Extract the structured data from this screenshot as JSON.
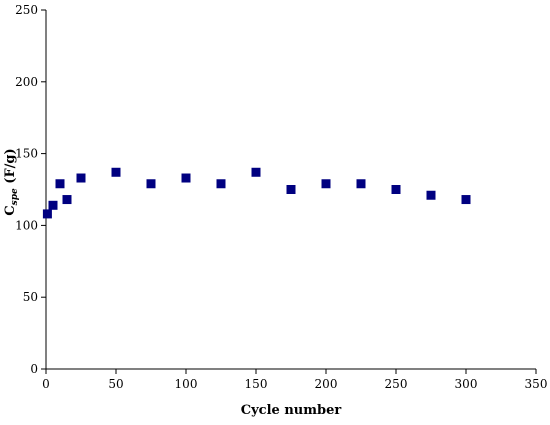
{
  "chart_data": {
    "type": "scatter",
    "title": "",
    "xlabel": "Cycle number",
    "ylabel": {
      "main": "C",
      "sub": "spe",
      "unit": " (F/g)"
    },
    "xlim": [
      0,
      350
    ],
    "ylim": [
      0,
      250
    ],
    "xticks": [
      0,
      50,
      100,
      150,
      200,
      250,
      300,
      350
    ],
    "yticks": [
      0,
      50,
      100,
      150,
      200,
      250
    ],
    "grid": false,
    "legend": "none",
    "marker": "square",
    "colors": {
      "marker": "#000080",
      "axis": "#000000"
    },
    "series": [
      {
        "x": [
          1,
          5,
          10,
          15,
          25,
          50,
          75,
          100,
          125,
          150,
          175,
          200,
          225,
          250,
          275,
          300
        ],
        "y": [
          108,
          114,
          129,
          118,
          133,
          137,
          129,
          133,
          129,
          137,
          125,
          129,
          129,
          125,
          121,
          118
        ]
      }
    ]
  }
}
